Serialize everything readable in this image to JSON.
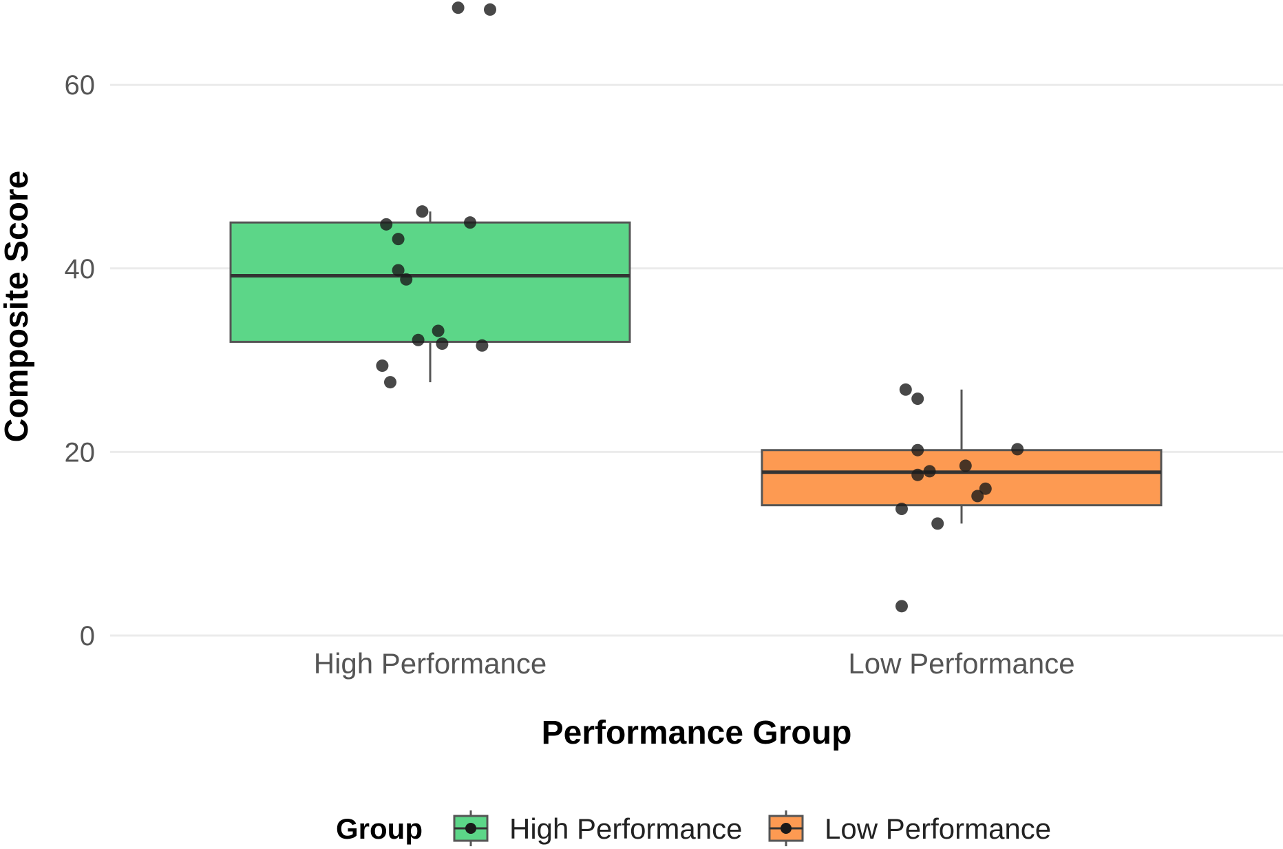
{
  "chart_data": {
    "type": "box",
    "xlabel": "Performance Group",
    "ylabel": "Composite Score",
    "ylim": [
      0,
      70
    ],
    "yticks": [
      0,
      20,
      40,
      60
    ],
    "grid": true,
    "legend": {
      "title": "Group",
      "placement": "bottom",
      "entries": [
        "High Performance",
        "Low Performance"
      ]
    },
    "categories": [
      "High Performance",
      "Low Performance"
    ],
    "boxes": [
      {
        "name": "High Performance",
        "color": "#5cd688",
        "q1": 32.0,
        "median": 39.2,
        "q3": 45.0,
        "whisker_low": 27.6,
        "whisker_high": 46.2,
        "points": [
          {
            "jitter": 0.07,
            "y": 68.4
          },
          {
            "jitter": 0.15,
            "y": 68.2
          },
          {
            "jitter": -0.02,
            "y": 46.2
          },
          {
            "jitter": 0.1,
            "y": 45.0
          },
          {
            "jitter": -0.11,
            "y": 44.8
          },
          {
            "jitter": -0.08,
            "y": 43.2
          },
          {
            "jitter": -0.08,
            "y": 39.8
          },
          {
            "jitter": -0.06,
            "y": 38.8
          },
          {
            "jitter": 0.02,
            "y": 33.2
          },
          {
            "jitter": -0.03,
            "y": 32.2
          },
          {
            "jitter": 0.03,
            "y": 31.8
          },
          {
            "jitter": 0.13,
            "y": 31.6
          },
          {
            "jitter": -0.12,
            "y": 29.4
          },
          {
            "jitter": -0.1,
            "y": 27.6
          }
        ]
      },
      {
        "name": "Low Performance",
        "color": "#fd9a52",
        "q1": 14.2,
        "median": 17.8,
        "q3": 20.2,
        "whisker_low": 12.2,
        "whisker_high": 26.8,
        "points": [
          {
            "jitter": -0.14,
            "y": 26.8
          },
          {
            "jitter": -0.11,
            "y": 25.8
          },
          {
            "jitter": -0.11,
            "y": 20.2
          },
          {
            "jitter": 0.14,
            "y": 20.3
          },
          {
            "jitter": 0.01,
            "y": 18.5
          },
          {
            "jitter": -0.08,
            "y": 17.9
          },
          {
            "jitter": -0.11,
            "y": 17.5
          },
          {
            "jitter": 0.06,
            "y": 16.0
          },
          {
            "jitter": 0.04,
            "y": 15.2
          },
          {
            "jitter": -0.15,
            "y": 13.8
          },
          {
            "jitter": -0.06,
            "y": 12.2
          },
          {
            "jitter": -0.15,
            "y": 3.2
          }
        ]
      }
    ]
  }
}
